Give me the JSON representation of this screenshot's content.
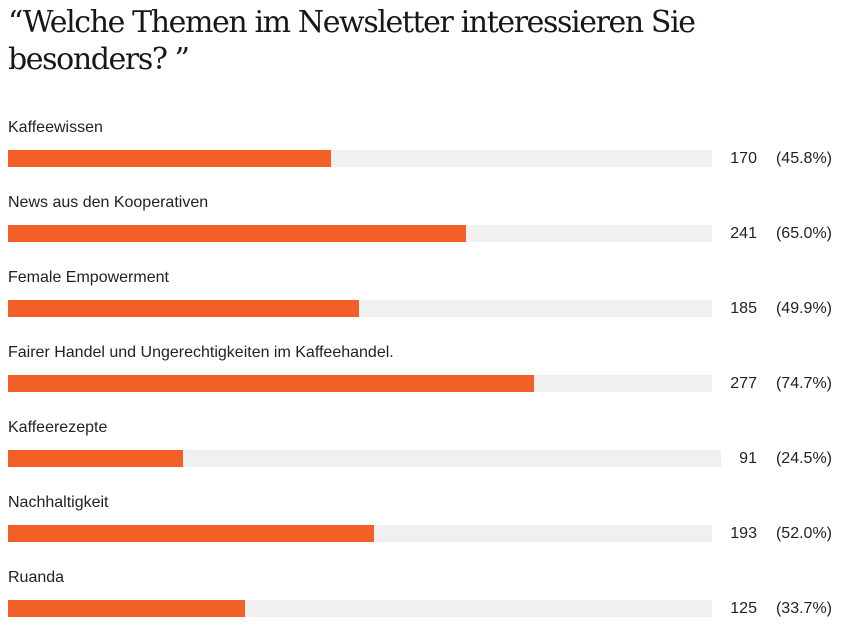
{
  "title": "“Welche Themen im Newsletter interessieren Sie besonders? ”",
  "colors": {
    "bar_fill": "#f26027",
    "bar_track": "#f0f0f0"
  },
  "chart_data": {
    "type": "bar",
    "orientation": "horizontal",
    "title": "“Welche Themen im Newsletter interessieren Sie besonders? ”",
    "xlabel": "",
    "ylabel": "",
    "xlim": [
      0,
      100
    ],
    "value_unit": "percent of respondents",
    "categories": [
      "Kaffeewissen",
      "News aus den Kooperativen",
      "Female Empowerment",
      "Fairer Handel und Ungerechtigkeiten im Kaffeehandel.",
      "Kaffeerezepte",
      "Nachhaltigkeit",
      "Ruanda"
    ],
    "counts": [
      170,
      241,
      185,
      277,
      91,
      193,
      125
    ],
    "percent": [
      45.8,
      65.0,
      49.9,
      74.7,
      24.5,
      52.0,
      33.7
    ],
    "count_labels": [
      "170",
      "241",
      "185",
      "277",
      "91",
      "193",
      "125"
    ],
    "percent_labels": [
      "(45.8%)",
      "(65.0%)",
      "(49.9%)",
      "(74.7%)",
      "(24.5%)",
      "(52.0%)",
      "(33.7%)"
    ],
    "grid": false,
    "legend": "none"
  }
}
